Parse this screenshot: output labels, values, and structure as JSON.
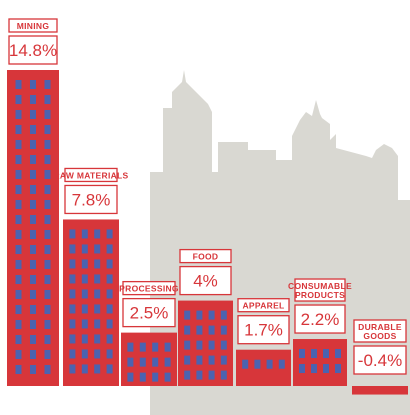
{
  "chart_data": {
    "type": "bar",
    "categories": [
      "MINING",
      "RAW MATERIALS",
      "PROCESSING",
      "FOOD",
      "APPAREL",
      "CONSUMABLE PRODUCTS",
      "DURABLE GOODS"
    ],
    "category_lines": [
      [
        "MINING"
      ],
      [
        "RAW MATERIALS"
      ],
      [
        "PROCESSING"
      ],
      [
        "FOOD"
      ],
      [
        "APPAREL"
      ],
      [
        "CONSUMABLE",
        "PRODUCTS"
      ],
      [
        "DURABLE",
        "GOODS"
      ]
    ],
    "values": [
      14.8,
      7.8,
      2.5,
      4,
      1.7,
      2.2,
      -0.4
    ],
    "value_labels": [
      "14.8%",
      "7.8%",
      "2.5%",
      "4%",
      "1.7%",
      "2.2%",
      "-0.4%"
    ],
    "unit": "%",
    "title": "",
    "xlabel": "",
    "ylabel": "",
    "grid": false,
    "colors": {
      "building": "#d7363a",
      "window": "#4b63b0",
      "label_border": "#d7363a",
      "label_bg": "#ffffff",
      "skyline": "#d9d8d2"
    }
  }
}
